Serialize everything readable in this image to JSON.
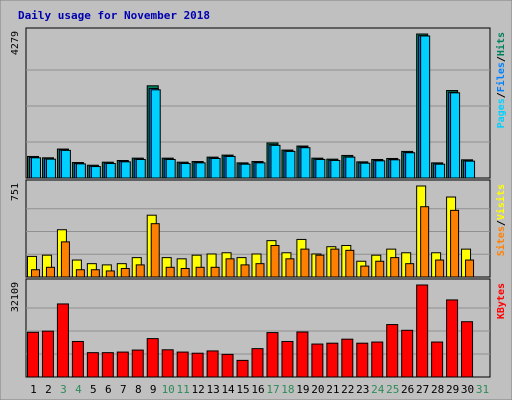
{
  "colors": {
    "background": "#c0c0c0",
    "frame": "#000000",
    "title": "#0000b0",
    "weekday_label": "#000000",
    "weekend_label": "#2e8b57",
    "pages": "#00d0ff",
    "files": "#0080ff",
    "hits": "#00805c",
    "visits": "#ffff00",
    "sites": "#ff8000",
    "kbytes": "#ff0000"
  },
  "chart_data": {
    "type": "bar",
    "title": "Daily usage for November 2018",
    "categories": [
      "1",
      "2",
      "3",
      "4",
      "5",
      "6",
      "7",
      "8",
      "9",
      "10",
      "11",
      "12",
      "13",
      "14",
      "15",
      "16",
      "17",
      "18",
      "19",
      "20",
      "21",
      "22",
      "23",
      "24",
      "25",
      "26",
      "27",
      "28",
      "29",
      "30",
      "31"
    ],
    "weekend_days": [
      "3",
      "4",
      "10",
      "11",
      "17",
      "18",
      "24",
      "25",
      "31"
    ],
    "panels": [
      {
        "id": "requests",
        "max_label": "4279",
        "side_legend": [
          {
            "text": "Pages",
            "color": "#00d0ff"
          },
          {
            "text": "Files",
            "color": "#0080ff"
          },
          {
            "text": "Hits",
            "color": "#00805c"
          }
        ],
        "separator": "/",
        "ylim": [
          0,
          4279
        ],
        "series": [
          {
            "name": "Hits",
            "color": "#00805c",
            "values": [
              640,
              600,
              860,
              460,
              380,
              470,
              520,
              590,
              2740,
              590,
              470,
              490,
              620,
              680,
              450,
              490,
              1040,
              830,
              950,
              590,
              560,
              670,
              480,
              550,
              580,
              790,
              4279,
              450,
              2600,
              540,
              null
            ]
          },
          {
            "name": "Files",
            "color": "#0080ff",
            "values": [
              610,
              570,
              830,
              430,
              350,
              440,
              490,
              560,
              2660,
              560,
              440,
              460,
              590,
              650,
              420,
              460,
              990,
              800,
              920,
              560,
              530,
              630,
              450,
              520,
              550,
              760,
              4230,
              420,
              2550,
              510,
              null
            ]
          },
          {
            "name": "Pages",
            "color": "#00d0ff",
            "values": [
              600,
              560,
              820,
              420,
              340,
              430,
              480,
              550,
              2620,
              550,
              430,
              450,
              580,
              640,
              410,
              450,
              970,
              790,
              900,
              550,
              520,
              620,
              440,
              510,
              540,
              750,
              4220,
              410,
              2530,
              500,
              null
            ]
          }
        ]
      },
      {
        "id": "visits",
        "max_label": "751",
        "side_legend": [
          {
            "text": "Sites",
            "color": "#ff8000"
          },
          {
            "text": "Visits",
            "color": "#ffff00"
          }
        ],
        "separator": "/",
        "ylim": [
          0,
          751
        ],
        "series": [
          {
            "name": "Visits",
            "color": "#ffff00",
            "values": [
              170,
              180,
              390,
              140,
              110,
              100,
              110,
              160,
              510,
              160,
              150,
              180,
              190,
              200,
              160,
              190,
              300,
              200,
              310,
              190,
              250,
              260,
              130,
              180,
              230,
              200,
              751,
              200,
              660,
              230,
              null
            ]
          },
          {
            "name": "Sites",
            "color": "#ff8000",
            "values": [
              60,
              80,
              290,
              60,
              60,
              50,
              70,
              100,
              440,
              80,
              70,
              80,
              80,
              150,
              100,
              110,
              260,
              150,
              230,
              180,
              230,
              220,
              90,
              130,
              160,
              110,
              580,
              140,
              550,
              140,
              null
            ]
          }
        ]
      },
      {
        "id": "kbytes",
        "max_label": "32109",
        "side_legend": [
          {
            "text": "KBytes",
            "color": "#ff0000"
          }
        ],
        "separator": "",
        "ylim": [
          0,
          32109
        ],
        "series": [
          {
            "name": "KBytes",
            "color": "#ff0000",
            "values": [
              15600,
              16000,
              25500,
              12400,
              8500,
              8500,
              8700,
              9400,
              13400,
              9500,
              8700,
              8300,
              9100,
              7900,
              5800,
              9900,
              15500,
              12400,
              15700,
              11500,
              11800,
              13200,
              11800,
              12200,
              18300,
              16300,
              32109,
              12200,
              26900,
              19300,
              null
            ]
          }
        ]
      }
    ]
  }
}
